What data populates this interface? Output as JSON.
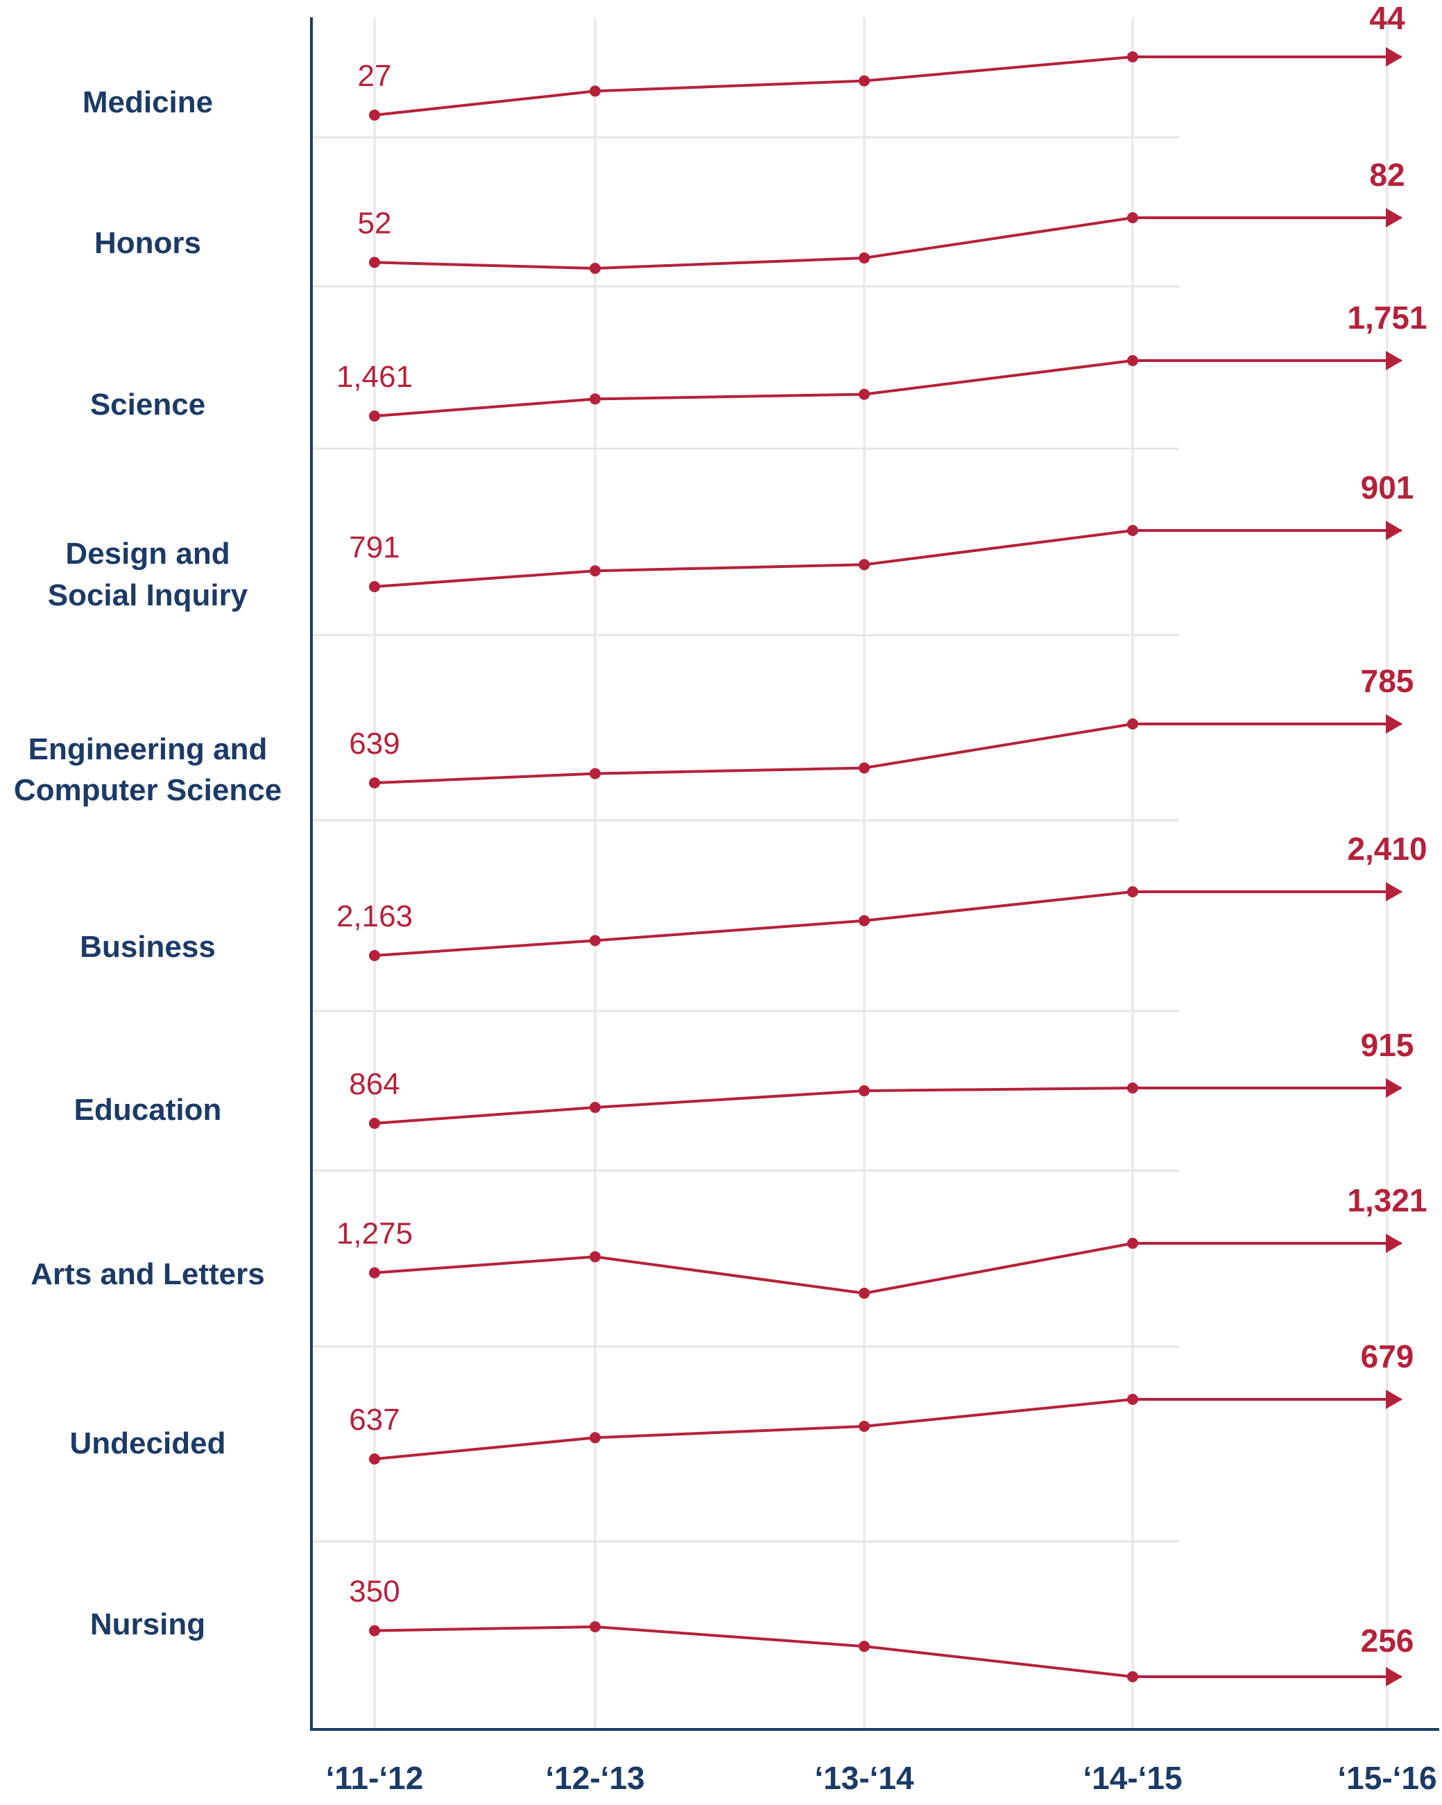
{
  "colors": {
    "series": "#b5213a",
    "labels": "#1b3a66",
    "grid": "#e6e6e6",
    "axis": "#1b3a66"
  },
  "chart_data": {
    "type": "line",
    "layout": "small-multiples",
    "x": [
      "'11-'12",
      "'12-'13",
      "'13-'14",
      "'14-'15",
      "'15-'16"
    ],
    "grid": true,
    "series": [
      {
        "name": "Medicine",
        "values": [
          27,
          34,
          37,
          44,
          44
        ],
        "start_label": "27",
        "end_label": "44"
      },
      {
        "name": "Honors",
        "values": [
          52,
          48,
          55,
          82,
          82
        ],
        "start_label": "52",
        "end_label": "82"
      },
      {
        "name": "Science",
        "values": [
          1461,
          1550,
          1575,
          1751,
          1751
        ],
        "start_label": "1,461",
        "end_label": "1,751"
      },
      {
        "name": "Design and Social Inquiry",
        "values": [
          791,
          822,
          834,
          901,
          901
        ],
        "start_label": "791",
        "end_label": "901"
      },
      {
        "name": "Engineering and Computer Science",
        "values": [
          639,
          662,
          676,
          785,
          785
        ],
        "start_label": "639",
        "end_label": "785"
      },
      {
        "name": "Business",
        "values": [
          2163,
          2221,
          2298,
          2410,
          2410
        ],
        "start_label": "2,163",
        "end_label": "2,410"
      },
      {
        "name": "Education",
        "values": [
          864,
          887,
          911,
          915,
          915
        ],
        "start_label": "864",
        "end_label": "915"
      },
      {
        "name": "Arts and Letters",
        "values": [
          1275,
          1300,
          1243,
          1321,
          1321
        ],
        "start_label": "1,275",
        "end_label": "1,321"
      },
      {
        "name": "Undecided",
        "values": [
          637,
          652,
          660,
          679,
          679
        ],
        "start_label": "637",
        "end_label": "679"
      },
      {
        "name": "Nursing",
        "values": [
          350,
          358,
          318,
          256,
          256
        ],
        "start_label": "350",
        "end_label": "256"
      }
    ]
  }
}
